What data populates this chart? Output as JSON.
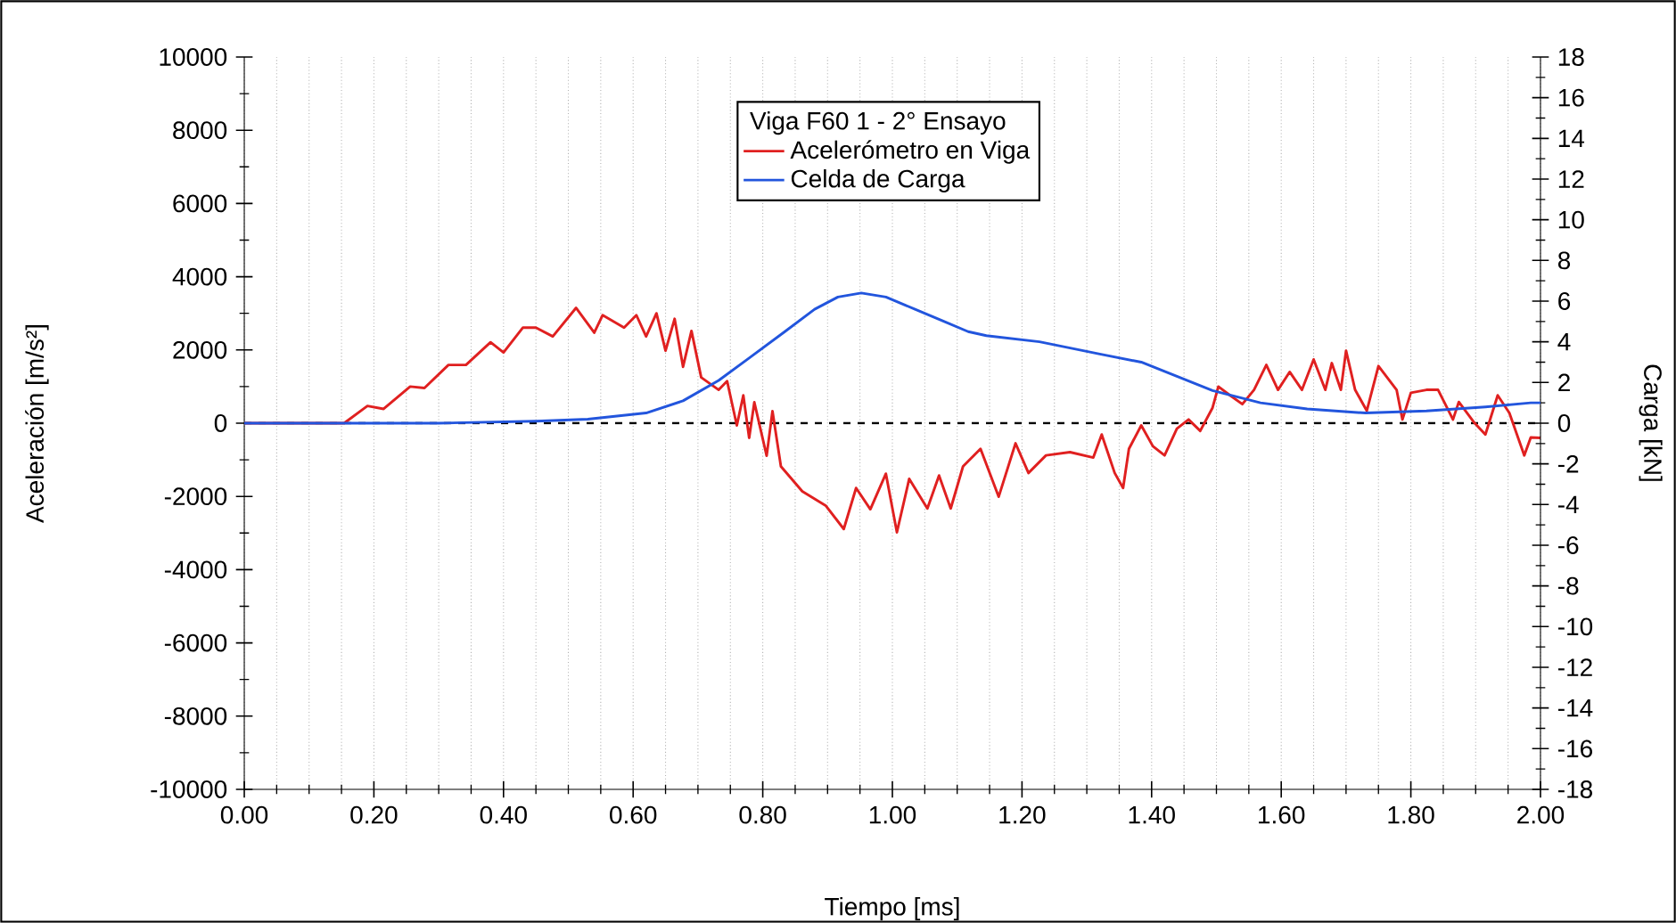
{
  "chart_data": {
    "type": "line",
    "xlabel": "Tiempo [ms]",
    "ylabel": "Aceleración [m/s²]",
    "y2label": "Carga [kN]",
    "legend_title": "Viga F60 1 - 2° Ensayo",
    "xlim": [
      0,
      2
    ],
    "xticks": [
      {
        "value": 0,
        "label": "0.00"
      },
      {
        "value": 0.2,
        "label": "0.20"
      },
      {
        "value": 0.4,
        "label": "0.40"
      },
      {
        "value": 0.6,
        "label": "0.60"
      },
      {
        "value": 0.8,
        "label": "0.80"
      },
      {
        "value": 1,
        "label": "1.00"
      },
      {
        "value": 1.2,
        "label": "1.20"
      },
      {
        "value": 1.4,
        "label": "1.40"
      },
      {
        "value": 1.6,
        "label": "1.60"
      },
      {
        "value": 1.8,
        "label": "1.80"
      },
      {
        "value": 2,
        "label": "2.00"
      }
    ],
    "ylim": [
      -10000,
      10000
    ],
    "yticks": [
      -10000,
      -8000,
      -6000,
      -4000,
      -2000,
      0,
      2000,
      4000,
      6000,
      8000,
      10000
    ],
    "y2lim": [
      -18,
      18
    ],
    "y2ticks": [
      -18,
      -16,
      -14,
      -12,
      -10,
      -8,
      -6,
      -4,
      -2,
      0,
      2,
      4,
      6,
      8,
      10,
      12,
      14,
      16,
      18
    ],
    "grid": "x",
    "legend": "top",
    "line_style": "solid",
    "ref_lines": [
      {
        "axis": "y",
        "value": 0,
        "color": "#000000",
        "line_style": "dashed"
      }
    ],
    "series": [
      {
        "name": "Acelerómetro en Viga",
        "color": "#e02020",
        "x": [
          0,
          0.154,
          0.19,
          0.215,
          0.256,
          0.278,
          0.315,
          0.342,
          0.38,
          0.4,
          0.43,
          0.45,
          0.476,
          0.512,
          0.54,
          0.553,
          0.586,
          0.605,
          0.62,
          0.636,
          0.65,
          0.664,
          0.677,
          0.69,
          0.705,
          0.732,
          0.745,
          0.76,
          0.77,
          0.779,
          0.787,
          0.806,
          0.815,
          0.828,
          0.861,
          0.897,
          0.925,
          0.944,
          0.966,
          0.99,
          1.007,
          1.026,
          1.054,
          1.072,
          1.09,
          1.109,
          1.136,
          1.164,
          1.19,
          1.21,
          1.237,
          1.274,
          1.31,
          1.323,
          1.343,
          1.356,
          1.365,
          1.384,
          1.402,
          1.42,
          1.439,
          1.457,
          1.475,
          1.494,
          1.503,
          1.521,
          1.54,
          1.558,
          1.577,
          1.595,
          1.613,
          1.632,
          1.65,
          1.668,
          1.678,
          1.692,
          1.7,
          1.714,
          1.732,
          1.75,
          1.778,
          1.787,
          1.8,
          1.824,
          1.842,
          1.865,
          1.874,
          1.897,
          1.915,
          1.934,
          1.952,
          1.975,
          1.985,
          2.0
        ],
        "values": [
          0,
          0,
          470,
          390,
          1000,
          960,
          1590,
          1590,
          2210,
          1930,
          2610,
          2610,
          2370,
          3150,
          2470,
          2950,
          2610,
          2950,
          2370,
          3000,
          1980,
          2850,
          1540,
          2520,
          1250,
          910,
          1150,
          -60,
          760,
          -400,
          570,
          -890,
          330,
          -1180,
          -1860,
          -2250,
          -2890,
          -1770,
          -2350,
          -1380,
          -2980,
          -1520,
          -2330,
          -1430,
          -2330,
          -1180,
          -700,
          -2010,
          -550,
          -1360,
          -880,
          -790,
          -940,
          -310,
          -1360,
          -1770,
          -700,
          -60,
          -630,
          -880,
          -150,
          100,
          -210,
          420,
          1000,
          760,
          520,
          910,
          1590,
          910,
          1400,
          910,
          1740,
          910,
          1640,
          910,
          1980,
          910,
          340,
          1560,
          910,
          100,
          830,
          910,
          910,
          100,
          580,
          30,
          -310,
          760,
          280,
          -880,
          -390,
          -400
        ]
      },
      {
        "name": "Celda de Carga",
        "color": "#2255dd",
        "axis": "y2",
        "x": [
          0,
          0.3,
          0.45,
          0.53,
          0.62,
          0.677,
          0.732,
          0.779,
          0.834,
          0.88,
          0.916,
          0.952,
          0.99,
          1.035,
          1.08,
          1.117,
          1.145,
          1.227,
          1.32,
          1.384,
          1.439,
          1.494,
          1.568,
          1.64,
          1.73,
          1.824,
          1.915,
          1.985,
          2.0
        ],
        "values": [
          0,
          0,
          0.1,
          0.2,
          0.5,
          1.1,
          2.1,
          3.2,
          4.5,
          5.6,
          6.2,
          6.4,
          6.2,
          5.6,
          5.0,
          4.5,
          4.3,
          4.0,
          3.4,
          3.0,
          2.3,
          1.6,
          1.0,
          0.7,
          0.5,
          0.6,
          0.8,
          1.0,
          1.0
        ]
      }
    ]
  }
}
